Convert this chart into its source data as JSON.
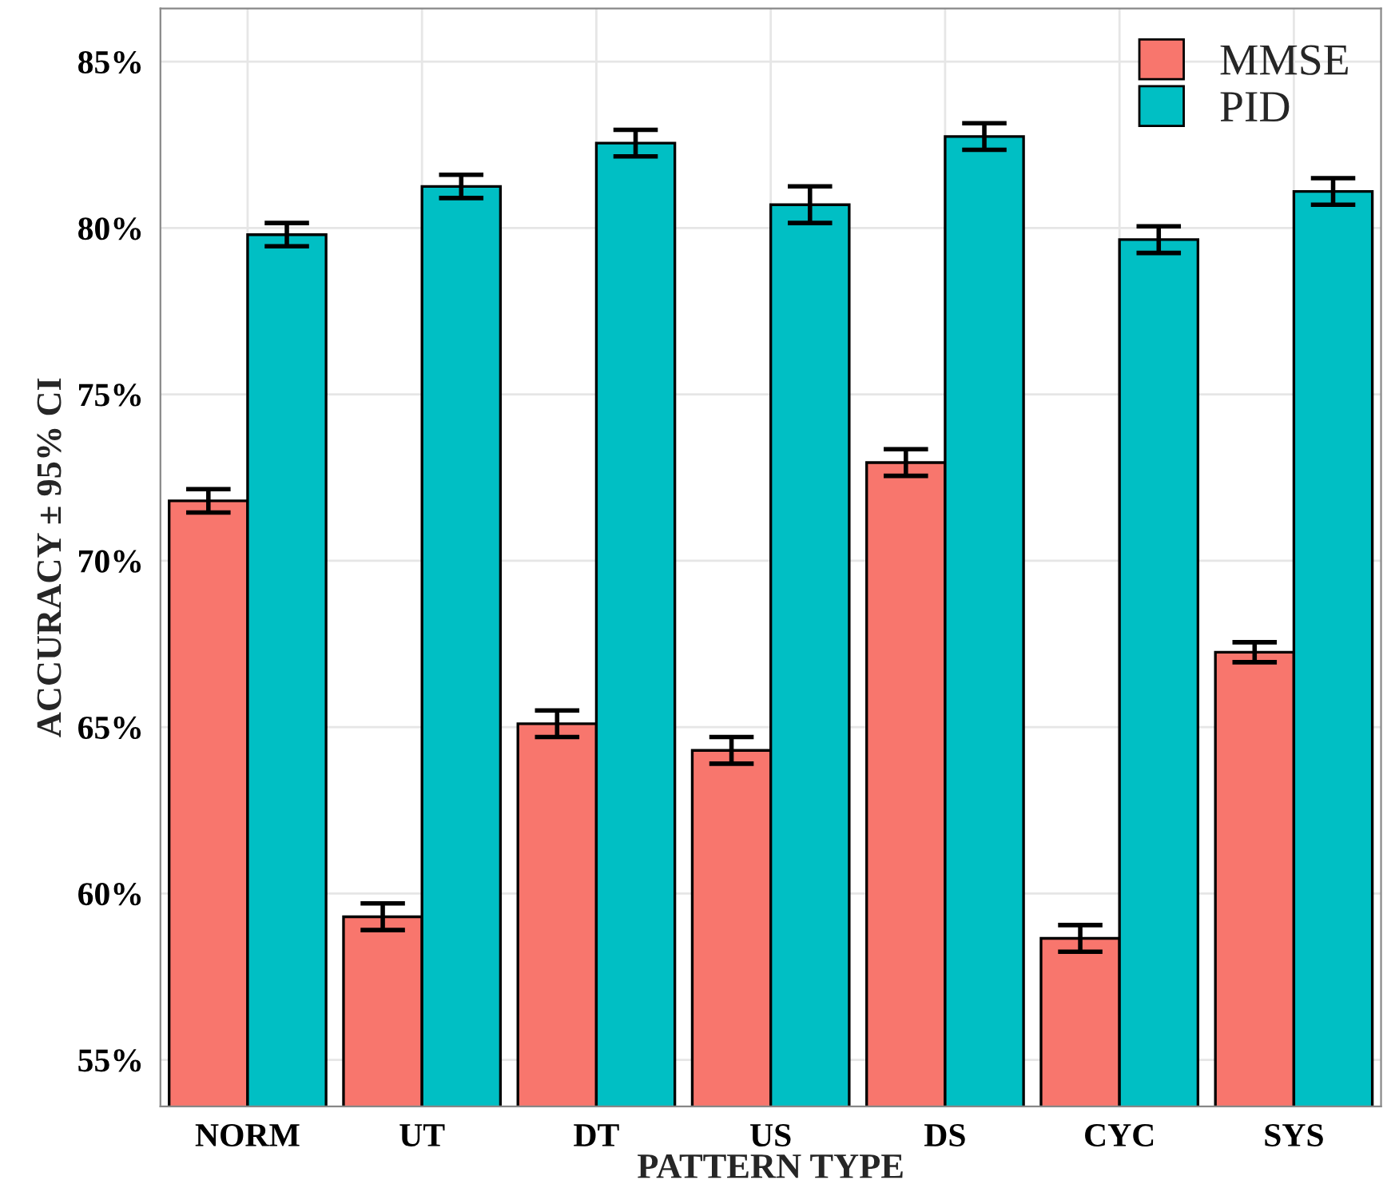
{
  "chart_data": {
    "type": "bar",
    "xlabel": "PATTERN TYPE",
    "ylabel": "ACCURACY ± 95% CI",
    "categories": [
      "NORM",
      "UT",
      "DT",
      "US",
      "DS",
      "CYC",
      "SYS"
    ],
    "series": [
      {
        "name": "MMSE",
        "color": "#f8766d",
        "values": [
          71.8,
          59.3,
          65.1,
          64.3,
          72.95,
          58.65,
          67.25
        ],
        "errors": [
          0.35,
          0.4,
          0.4,
          0.4,
          0.4,
          0.4,
          0.3
        ]
      },
      {
        "name": "PID",
        "color": "#00bfc4",
        "values": [
          79.8,
          81.25,
          82.55,
          80.7,
          82.75,
          79.65,
          81.1
        ],
        "errors": [
          0.35,
          0.35,
          0.4,
          0.55,
          0.4,
          0.4,
          0.4
        ]
      }
    ],
    "ylim": [
      53.6,
      86.6
    ],
    "yticks": [
      {
        "value": 55,
        "label": "55%"
      },
      {
        "value": 60,
        "label": "60%"
      },
      {
        "value": 65,
        "label": "65%"
      },
      {
        "value": 70,
        "label": "70%"
      },
      {
        "value": 75,
        "label": "75%"
      },
      {
        "value": 80,
        "label": "80%"
      },
      {
        "value": 85,
        "label": "85%"
      }
    ],
    "grid": true,
    "legend": "top right"
  }
}
